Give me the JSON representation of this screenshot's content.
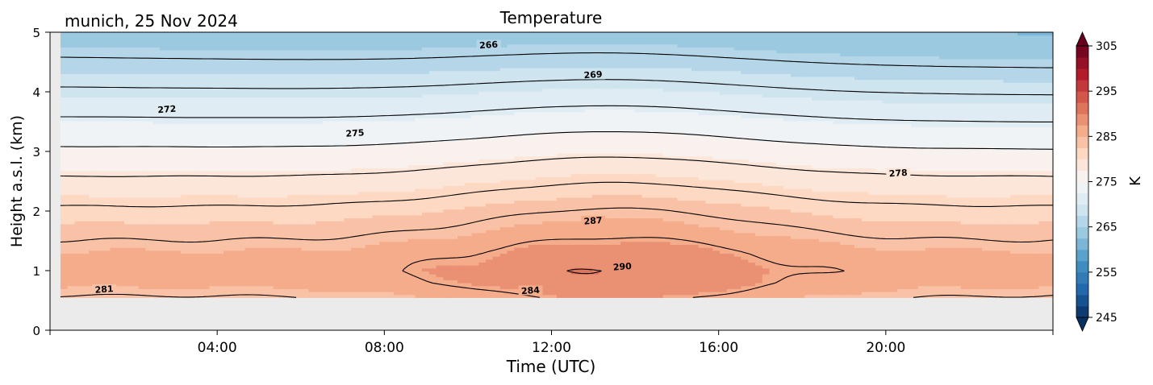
{
  "chart_data": {
    "type": "heatmap",
    "title": "Temperature",
    "subtitle": "munich, 25 Nov 2024",
    "xlabel": "Time (UTC)",
    "ylabel": "Height a.s.l. (km)",
    "colorbar_label": "K",
    "xlim_hours": [
      0,
      24
    ],
    "ylim_km": [
      0,
      5
    ],
    "data_bottom_km": 0.55,
    "x_ticks": [
      {
        "hour": 4,
        "label": "04:00"
      },
      {
        "hour": 8,
        "label": "08:00"
      },
      {
        "hour": 12,
        "label": "12:00"
      },
      {
        "hour": 16,
        "label": "16:00"
      },
      {
        "hour": 20,
        "label": "20:00"
      }
    ],
    "y_ticks": [
      {
        "km": 0,
        "label": "0"
      },
      {
        "km": 1,
        "label": "1"
      },
      {
        "km": 2,
        "label": "2"
      },
      {
        "km": 3,
        "label": "3"
      },
      {
        "km": 4,
        "label": "4"
      },
      {
        "km": 5,
        "label": "5"
      }
    ],
    "colorbar": {
      "min": 245,
      "max": 305,
      "step": 2.5,
      "ticks": [
        {
          "value": 245,
          "label": "245"
        },
        {
          "value": 255,
          "label": "255"
        },
        {
          "value": 265,
          "label": "265"
        },
        {
          "value": 275,
          "label": "275"
        },
        {
          "value": 285,
          "label": "285"
        },
        {
          "value": 295,
          "label": "295"
        },
        {
          "value": 305,
          "label": "305"
        }
      ],
      "colormap": "RdBu_r",
      "extend": "both"
    },
    "temperature_profile": {
      "heights_km": [
        0.55,
        0.8,
        1.0,
        1.3,
        1.6,
        2.0,
        2.5,
        3.0,
        3.5,
        4.0,
        4.5,
        5.0
      ],
      "temps_K": [
        283.8,
        285.5,
        286.0,
        285.2,
        283.5,
        281.5,
        278.5,
        275.5,
        272.5,
        269.5,
        266.5,
        263.5
      ]
    },
    "diurnal_warming": {
      "peak_hour": 13.5,
      "surface_amplitude_K": 4.0
    },
    "contour_levels": [
      266,
      269,
      272,
      275,
      278,
      281,
      284,
      287,
      290
    ],
    "contour_labels": [
      {
        "text": "266",
        "hour": 10.5,
        "km": 4.75
      },
      {
        "text": "269",
        "hour": 13.0,
        "km": 4.25
      },
      {
        "text": "272",
        "hour": 2.8,
        "km": 3.67
      },
      {
        "text": "275",
        "hour": 7.3,
        "km": 3.27
      },
      {
        "text": "278",
        "hour": 20.3,
        "km": 2.6
      },
      {
        "text": "287",
        "hour": 13.0,
        "km": 1.8
      },
      {
        "text": "290",
        "hour": 13.7,
        "km": 1.03
      },
      {
        "text": "281",
        "hour": 1.3,
        "km": 0.65
      },
      {
        "text": "284",
        "hour": 11.5,
        "km": 0.63
      }
    ]
  }
}
